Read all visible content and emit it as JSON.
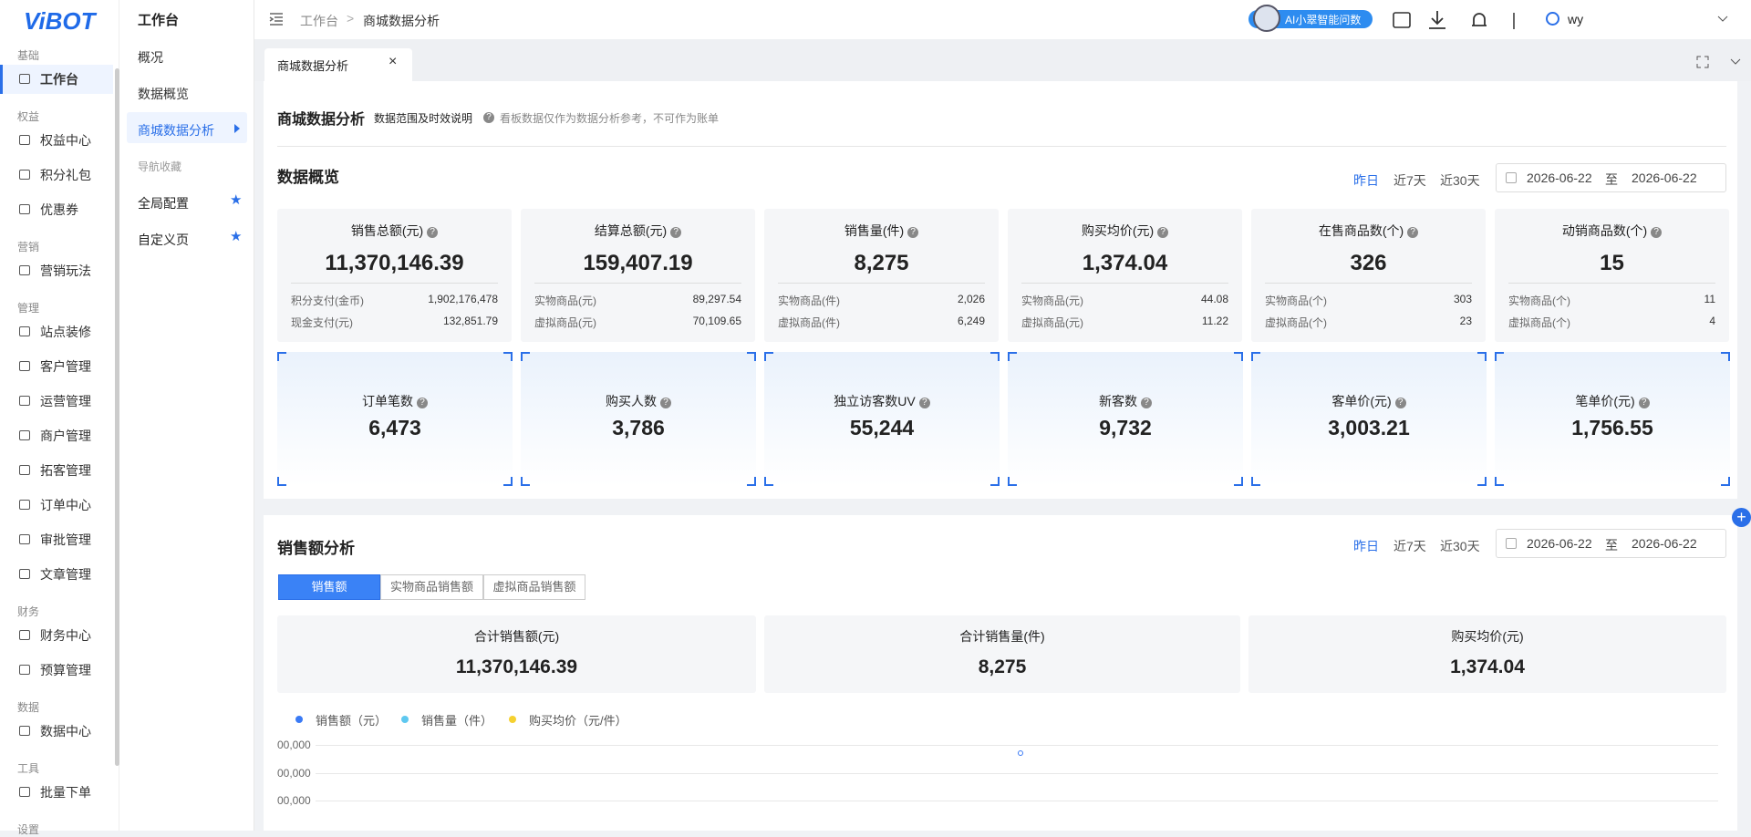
{
  "logo": "ViBOT",
  "sidebar": [
    {
      "title": "基础",
      "items": [
        "工作台"
      ]
    },
    {
      "title": "权益",
      "items": [
        "权益中心",
        "积分礼包",
        "优惠券"
      ]
    },
    {
      "title": "营销",
      "items": [
        "营销玩法"
      ]
    },
    {
      "title": "管理",
      "items": [
        "站点装修",
        "客户管理",
        "运营管理",
        "商户管理",
        "拓客管理",
        "订单中心",
        "审批管理",
        "文章管理"
      ]
    },
    {
      "title": "财务",
      "items": [
        "财务中心",
        "预算管理"
      ]
    },
    {
      "title": "数据",
      "items": [
        "数据中心"
      ]
    },
    {
      "title": "工具",
      "items": [
        "批量下单"
      ]
    },
    {
      "title": "设置",
      "items": []
    }
  ],
  "submenu": {
    "title": "工作台",
    "items": [
      "概况",
      "数据概览",
      "商城数据分析"
    ],
    "section": "导航收藏",
    "favorites": [
      "全局配置",
      "自定义页"
    ]
  },
  "topbar": {
    "breadcrumb": [
      "工作台",
      "商城数据分析"
    ],
    "ai": "AI小翠智能问数",
    "user": "wy"
  },
  "tab": "商城数据分析",
  "header": {
    "title": "商城数据分析",
    "subtitle": "数据范围及时效说明",
    "note": "看板数据仅作为数据分析参考，不可作为账单"
  },
  "overview": {
    "title": "数据概览",
    "ranges": [
      "昨日",
      "近7天",
      "近30天"
    ],
    "date_from": "2026-06-22",
    "separator": "至",
    "date_to": "2026-06-22",
    "cards": [
      {
        "label": "销售总额(元)",
        "value": "11,370,146.39",
        "rows": [
          [
            "积分支付(金币)",
            "1,902,176,478"
          ],
          [
            "现金支付(元)",
            "132,851.79"
          ]
        ]
      },
      {
        "label": "结算总额(元)",
        "value": "159,407.19",
        "rows": [
          [
            "实物商品(元)",
            "89,297.54"
          ],
          [
            "虚拟商品(元)",
            "70,109.65"
          ]
        ]
      },
      {
        "label": "销售量(件)",
        "value": "8,275",
        "rows": [
          [
            "实物商品(件)",
            "2,026"
          ],
          [
            "虚拟商品(件)",
            "6,249"
          ]
        ]
      },
      {
        "label": "购买均价(元)",
        "value": "1,374.04",
        "rows": [
          [
            "实物商品(元)",
            "44.08"
          ],
          [
            "虚拟商品(元)",
            "11.22"
          ]
        ]
      },
      {
        "label": "在售商品数(个)",
        "value": "326",
        "rows": [
          [
            "实物商品(个)",
            "303"
          ],
          [
            "虚拟商品(个)",
            "23"
          ]
        ]
      },
      {
        "label": "动销商品数(个)",
        "value": "15",
        "rows": [
          [
            "实物商品(个)",
            "11"
          ],
          [
            "虚拟商品(个)",
            "4"
          ]
        ]
      }
    ],
    "kpis": [
      {
        "label": "订单笔数",
        "value": "6,473"
      },
      {
        "label": "购买人数",
        "value": "3,786"
      },
      {
        "label": "独立访客数UV",
        "value": "55,244"
      },
      {
        "label": "新客数",
        "value": "9,732"
      },
      {
        "label": "客单价(元)",
        "value": "3,003.21"
      },
      {
        "label": "笔单价(元)",
        "value": "1,756.55"
      }
    ]
  },
  "sales": {
    "title": "销售额分析",
    "ranges": [
      "昨日",
      "近7天",
      "近30天"
    ],
    "date_from": "2026-06-22",
    "separator": "至",
    "date_to": "2026-06-22",
    "tabs": [
      "销售额",
      "实物商品销售额",
      "虚拟商品销售额"
    ],
    "summary": [
      {
        "label": "合计销售额(元)",
        "value": "11,370,146.39"
      },
      {
        "label": "合计销售量(件)",
        "value": "8,275"
      },
      {
        "label": "购买均价(元)",
        "value": "1,374.04"
      }
    ],
    "legend": [
      {
        "name": "销售额（元）",
        "color": "#3a7af5"
      },
      {
        "name": "销售量（件）",
        "color": "#5ec8f0"
      },
      {
        "name": "购买均价（元/件）",
        "color": "#f5d130"
      }
    ],
    "axis_labels": [
      "00,000",
      "00,000",
      "00,000"
    ]
  }
}
